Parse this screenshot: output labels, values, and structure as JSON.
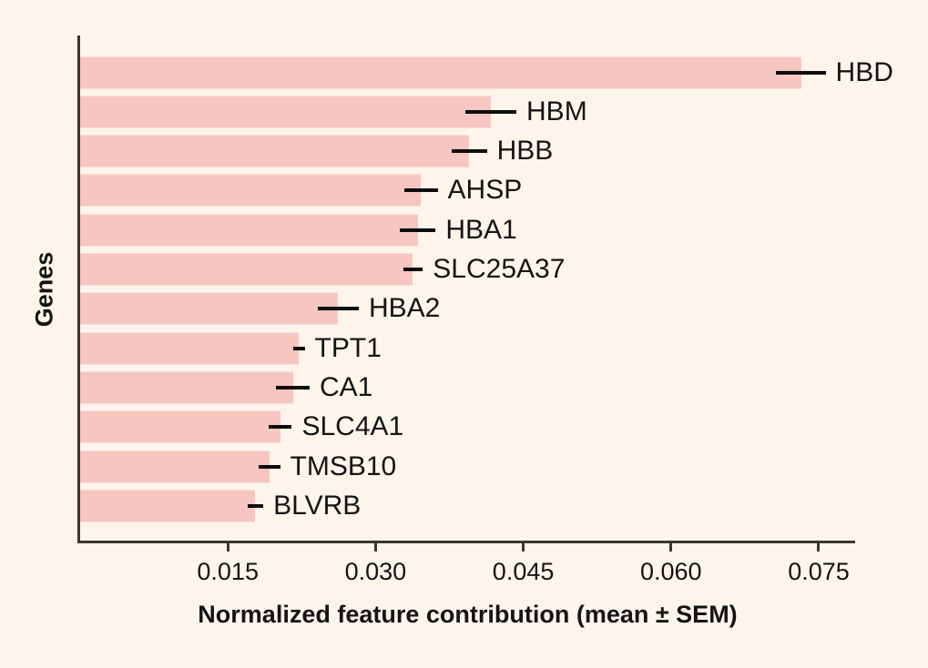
{
  "chart_data": {
    "type": "bar",
    "orientation": "horizontal",
    "title": "",
    "xlabel": "Normalized feature contribution (mean ± SEM)",
    "ylabel": "Genes",
    "grid": false,
    "legend": null,
    "xlim": [
      0,
      0.0787
    ],
    "xtick_values": [
      0.015,
      0.03,
      0.045,
      0.06,
      0.075
    ],
    "xtick_labels": [
      "0.015",
      "0.030",
      "0.045",
      "0.060",
      "0.075"
    ],
    "categories": [
      "HBD",
      "HBM",
      "HBB",
      "AHSP",
      "HBA1",
      "SLC25A37",
      "HBA2",
      "TPT1",
      "CA1",
      "SLC4A1",
      "TMSB10",
      "BLVRB"
    ],
    "series": [
      {
        "name": "Normalized feature contribution (mean)",
        "values": [
          0.0732,
          0.0417,
          0.0395,
          0.0346,
          0.0343,
          0.0338,
          0.0262,
          0.0222,
          0.0216,
          0.0203,
          0.0192,
          0.0178
        ]
      },
      {
        "name": "SEM",
        "values": [
          0.0025,
          0.0026,
          0.0018,
          0.0017,
          0.0018,
          0.001,
          0.0021,
          0.0006,
          0.0017,
          0.0012,
          0.0011,
          0.0008
        ]
      }
    ],
    "colors": {
      "background": "#fdf5ec",
      "bar": "#f8c6c2",
      "error_bar": "#0d0d0d",
      "axis": "#3a3732",
      "text": "#141414"
    }
  }
}
